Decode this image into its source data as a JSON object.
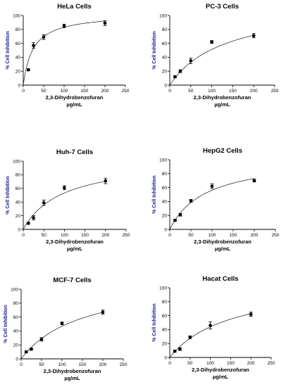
{
  "chart_data": [
    {
      "type": "scatter",
      "title": "HeLa Cells",
      "xlabel": "2,3-Dihydrobenzofuran",
      "xunit": "µg/mL",
      "ylabel": "% Cell Inhibition",
      "xlim": [
        0,
        250
      ],
      "ylim": [
        0,
        100
      ],
      "xticks": [
        0,
        50,
        100,
        150,
        200,
        250
      ],
      "yticks": [
        0,
        20,
        40,
        60,
        80,
        100
      ],
      "x": [
        12.5,
        25,
        50,
        100,
        200
      ],
      "y": [
        22,
        57,
        69,
        85,
        89
      ],
      "error": [
        1.5,
        4,
        3.5,
        2.5,
        3.5
      ],
      "fit": {
        "model": "hyperbolic",
        "max": 103,
        "half": 24
      }
    },
    {
      "type": "scatter",
      "title": "PC-3 Cells",
      "xlabel": "2,3-Dihydrobenzofuran",
      "xunit": "µg/mL",
      "ylabel": "% Cell Inhibition",
      "xlim": [
        0,
        250
      ],
      "ylim": [
        0,
        100
      ],
      "xticks": [
        0,
        50,
        100,
        150,
        200,
        250
      ],
      "yticks": [
        0,
        20,
        40,
        60,
        80,
        100
      ],
      "x": [
        12.5,
        25,
        50,
        100,
        200
      ],
      "y": [
        12,
        20,
        35,
        62,
        71
      ],
      "error": [
        1.5,
        2,
        4,
        2,
        3
      ],
      "fit": {
        "model": "hyperbolic",
        "max": 118,
        "half": 130
      }
    },
    {
      "type": "scatter",
      "title": "Huh-7 Cells",
      "xlabel": "2,3-Dihydrobenzofuran",
      "xunit": "µg/mL",
      "ylabel": "% Cell Inhibition",
      "xlim": [
        0,
        250
      ],
      "ylim": [
        0,
        100
      ],
      "xticks": [
        0,
        50,
        100,
        150,
        200,
        250
      ],
      "yticks": [
        0,
        20,
        40,
        60,
        80,
        100
      ],
      "x": [
        12.5,
        25,
        50,
        100,
        200
      ],
      "y": [
        9,
        17,
        39,
        61,
        71
      ],
      "error": [
        1.5,
        3,
        4,
        3,
        4
      ],
      "fit": {
        "model": "hyperbolic",
        "max": 104,
        "half": 95
      }
    },
    {
      "type": "scatter",
      "title": "HepG2 Cells",
      "xlabel": "2,3-Dihydrobenzofuran",
      "xunit": "µg/mL",
      "ylabel": "% Cell Inhibition",
      "xlim": [
        0,
        250
      ],
      "ylim": [
        0,
        100
      ],
      "xticks": [
        0,
        50,
        100,
        150,
        200,
        250
      ],
      "yticks": [
        0,
        20,
        40,
        60,
        80,
        100
      ],
      "x": [
        12.5,
        25,
        50,
        100,
        200
      ],
      "y": [
        13,
        21,
        41,
        62,
        70
      ],
      "error": [
        1.5,
        2,
        2,
        3.5,
        2
      ],
      "fit": {
        "model": "hyperbolic",
        "max": 104,
        "half": 85
      }
    },
    {
      "type": "scatter",
      "title": "MCF-7 Cells",
      "xlabel": "2,3-Dihydrobenzofuran",
      "xunit": "µg/mL",
      "ylabel": "% Cell Inhibition",
      "xlim": [
        0,
        250
      ],
      "ylim": [
        0,
        100
      ],
      "xticks": [
        0,
        50,
        100,
        150,
        200,
        250
      ],
      "yticks": [
        0,
        20,
        40,
        60,
        80,
        100
      ],
      "x": [
        12.5,
        25,
        50,
        100,
        200
      ],
      "y": [
        10,
        14,
        28,
        51,
        67
      ],
      "error": [
        1.5,
        1.5,
        2.5,
        2,
        3
      ],
      "fit": {
        "model": "hyperbolic",
        "max": 117,
        "half": 150
      }
    },
    {
      "type": "scatter",
      "title": "Hacat Cells",
      "xlabel": "2,3-Dihydrobenzofuran",
      "xunit": "µg/mL",
      "ylabel": "% Cell Inhibition",
      "xlim": [
        0,
        250
      ],
      "ylim": [
        0,
        100
      ],
      "xticks": [
        0,
        50,
        100,
        150,
        200,
        250
      ],
      "yticks": [
        0,
        20,
        40,
        60,
        80,
        100
      ],
      "x": [
        12.5,
        25,
        50,
        100,
        200
      ],
      "y": [
        9,
        12,
        29,
        46,
        62
      ],
      "error": [
        1.5,
        2,
        2,
        5,
        3
      ],
      "fit": {
        "model": "hyperbolic",
        "max": 110,
        "half": 150
      }
    }
  ]
}
